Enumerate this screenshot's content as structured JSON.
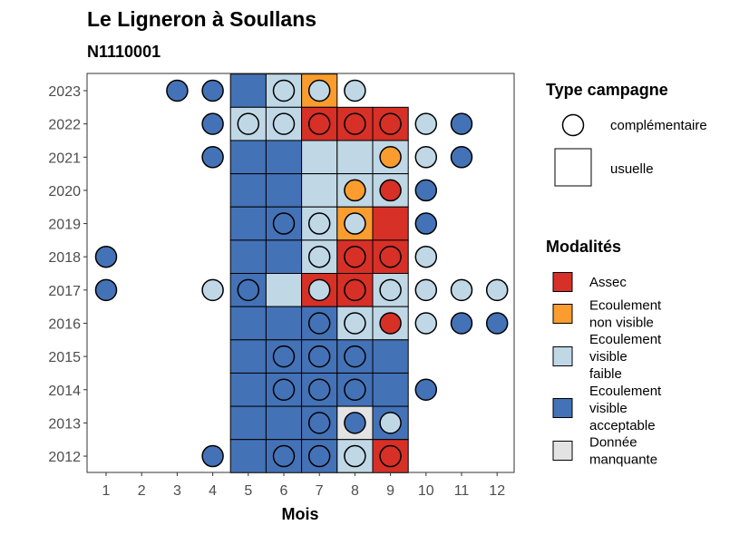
{
  "chart_data": {
    "type": "heatmap",
    "title": "Le Ligneron à Soullans",
    "subtitle": "N1110001",
    "xlabel": "Mois",
    "ylabel": "",
    "x_ticks": [
      "1",
      "2",
      "3",
      "4",
      "5",
      "6",
      "7",
      "8",
      "9",
      "10",
      "11",
      "12"
    ],
    "y_ticks": [
      "2012",
      "2013",
      "2014",
      "2015",
      "2016",
      "2017",
      "2018",
      "2019",
      "2020",
      "2021",
      "2022",
      "2023"
    ],
    "xlim": [
      1,
      12
    ],
    "ylim": [
      2012,
      2023
    ],
    "grid": false,
    "legend_placement": "right",
    "colors": {
      "assec": "#d73027",
      "ecoulement_non_visible": "#fa9c2e",
      "ecoulement_visible_faible": "#c0d8e6",
      "ecoulement_visible_acceptable": "#4472b7",
      "donnee_manquante": "#e3e3e3"
    },
    "legend_type": {
      "title": "Type campagne",
      "entries": [
        {
          "label": "complémentaire",
          "shape": "circle"
        },
        {
          "label": "usuelle",
          "shape": "square"
        }
      ]
    },
    "legend_modalites": {
      "title": "Modalités",
      "entries": [
        {
          "key": "assec",
          "lines": [
            "Assec"
          ]
        },
        {
          "key": "ecoulement_non_visible",
          "lines": [
            "Ecoulement",
            "non visible"
          ]
        },
        {
          "key": "ecoulement_visible_faible",
          "lines": [
            "Ecoulement",
            "visible",
            "faible"
          ]
        },
        {
          "key": "ecoulement_visible_acceptable",
          "lines": [
            "Ecoulement",
            "visible",
            "acceptable"
          ]
        },
        {
          "key": "donnee_manquante",
          "lines": [
            "Donnée",
            "manquante"
          ]
        }
      ]
    },
    "usuelle": [
      {
        "year": 2023,
        "month": 5,
        "value": "ecoulement_visible_acceptable"
      },
      {
        "year": 2023,
        "month": 6,
        "value": "ecoulement_visible_faible"
      },
      {
        "year": 2023,
        "month": 7,
        "value": "ecoulement_non_visible"
      },
      {
        "year": 2022,
        "month": 5,
        "value": "ecoulement_visible_faible"
      },
      {
        "year": 2022,
        "month": 6,
        "value": "ecoulement_visible_faible"
      },
      {
        "year": 2022,
        "month": 7,
        "value": "assec"
      },
      {
        "year": 2022,
        "month": 8,
        "value": "assec"
      },
      {
        "year": 2022,
        "month": 9,
        "value": "assec"
      },
      {
        "year": 2021,
        "month": 5,
        "value": "ecoulement_visible_acceptable"
      },
      {
        "year": 2021,
        "month": 6,
        "value": "ecoulement_visible_acceptable"
      },
      {
        "year": 2021,
        "month": 7,
        "value": "ecoulement_visible_faible"
      },
      {
        "year": 2021,
        "month": 8,
        "value": "ecoulement_visible_faible"
      },
      {
        "year": 2021,
        "month": 9,
        "value": "ecoulement_visible_faible"
      },
      {
        "year": 2020,
        "month": 5,
        "value": "ecoulement_visible_acceptable"
      },
      {
        "year": 2020,
        "month": 6,
        "value": "ecoulement_visible_acceptable"
      },
      {
        "year": 2020,
        "month": 7,
        "value": "ecoulement_visible_faible"
      },
      {
        "year": 2020,
        "month": 8,
        "value": "ecoulement_visible_faible"
      },
      {
        "year": 2020,
        "month": 9,
        "value": "ecoulement_visible_faible"
      },
      {
        "year": 2019,
        "month": 5,
        "value": "ecoulement_visible_acceptable"
      },
      {
        "year": 2019,
        "month": 6,
        "value": "ecoulement_visible_acceptable"
      },
      {
        "year": 2019,
        "month": 7,
        "value": "ecoulement_visible_faible"
      },
      {
        "year": 2019,
        "month": 8,
        "value": "ecoulement_non_visible"
      },
      {
        "year": 2019,
        "month": 9,
        "value": "assec"
      },
      {
        "year": 2018,
        "month": 5,
        "value": "ecoulement_visible_acceptable"
      },
      {
        "year": 2018,
        "month": 6,
        "value": "ecoulement_visible_acceptable"
      },
      {
        "year": 2018,
        "month": 7,
        "value": "ecoulement_visible_faible"
      },
      {
        "year": 2018,
        "month": 8,
        "value": "assec"
      },
      {
        "year": 2018,
        "month": 9,
        "value": "assec"
      },
      {
        "year": 2017,
        "month": 5,
        "value": "ecoulement_visible_acceptable"
      },
      {
        "year": 2017,
        "month": 6,
        "value": "ecoulement_visible_faible"
      },
      {
        "year": 2017,
        "month": 7,
        "value": "assec"
      },
      {
        "year": 2017,
        "month": 8,
        "value": "assec"
      },
      {
        "year": 2017,
        "month": 9,
        "value": "ecoulement_visible_faible"
      },
      {
        "year": 2016,
        "month": 5,
        "value": "ecoulement_visible_acceptable"
      },
      {
        "year": 2016,
        "month": 6,
        "value": "ecoulement_visible_acceptable"
      },
      {
        "year": 2016,
        "month": 7,
        "value": "ecoulement_visible_acceptable"
      },
      {
        "year": 2016,
        "month": 8,
        "value": "ecoulement_visible_faible"
      },
      {
        "year": 2016,
        "month": 9,
        "value": "ecoulement_visible_faible"
      },
      {
        "year": 2015,
        "month": 5,
        "value": "ecoulement_visible_acceptable"
      },
      {
        "year": 2015,
        "month": 6,
        "value": "ecoulement_visible_acceptable"
      },
      {
        "year": 2015,
        "month": 7,
        "value": "ecoulement_visible_acceptable"
      },
      {
        "year": 2015,
        "month": 8,
        "value": "ecoulement_visible_acceptable"
      },
      {
        "year": 2015,
        "month": 9,
        "value": "ecoulement_visible_acceptable"
      },
      {
        "year": 2014,
        "month": 5,
        "value": "ecoulement_visible_acceptable"
      },
      {
        "year": 2014,
        "month": 6,
        "value": "ecoulement_visible_acceptable"
      },
      {
        "year": 2014,
        "month": 7,
        "value": "ecoulement_visible_acceptable"
      },
      {
        "year": 2014,
        "month": 8,
        "value": "ecoulement_visible_acceptable"
      },
      {
        "year": 2014,
        "month": 9,
        "value": "ecoulement_visible_acceptable"
      },
      {
        "year": 2013,
        "month": 5,
        "value": "ecoulement_visible_acceptable"
      },
      {
        "year": 2013,
        "month": 6,
        "value": "ecoulement_visible_acceptable"
      },
      {
        "year": 2013,
        "month": 7,
        "value": "ecoulement_visible_acceptable"
      },
      {
        "year": 2013,
        "month": 8,
        "value": "donnee_manquante"
      },
      {
        "year": 2013,
        "month": 9,
        "value": "ecoulement_visible_acceptable"
      },
      {
        "year": 2012,
        "month": 5,
        "value": "ecoulement_visible_acceptable"
      },
      {
        "year": 2012,
        "month": 6,
        "value": "ecoulement_visible_acceptable"
      },
      {
        "year": 2012,
        "month": 7,
        "value": "ecoulement_visible_acceptable"
      },
      {
        "year": 2012,
        "month": 8,
        "value": "ecoulement_visible_faible"
      },
      {
        "year": 2012,
        "month": 9,
        "value": "assec"
      }
    ],
    "complementaire": [
      {
        "year": 2023,
        "month": 3,
        "value": "ecoulement_visible_acceptable"
      },
      {
        "year": 2023,
        "month": 4,
        "value": "ecoulement_visible_acceptable"
      },
      {
        "year": 2023,
        "month": 6,
        "value": "ecoulement_visible_faible"
      },
      {
        "year": 2023,
        "month": 7,
        "value": "ecoulement_visible_faible"
      },
      {
        "year": 2023,
        "month": 8,
        "value": "ecoulement_visible_faible"
      },
      {
        "year": 2022,
        "month": 4,
        "value": "ecoulement_visible_acceptable"
      },
      {
        "year": 2022,
        "month": 5,
        "value": "ecoulement_visible_faible"
      },
      {
        "year": 2022,
        "month": 6,
        "value": "ecoulement_visible_faible"
      },
      {
        "year": 2022,
        "month": 7,
        "value": "assec"
      },
      {
        "year": 2022,
        "month": 8,
        "value": "assec"
      },
      {
        "year": 2022,
        "month": 9,
        "value": "assec"
      },
      {
        "year": 2022,
        "month": 10,
        "value": "ecoulement_visible_faible"
      },
      {
        "year": 2022,
        "month": 11,
        "value": "ecoulement_visible_acceptable"
      },
      {
        "year": 2021,
        "month": 4,
        "value": "ecoulement_visible_acceptable"
      },
      {
        "year": 2021,
        "month": 9,
        "value": "ecoulement_non_visible"
      },
      {
        "year": 2021,
        "month": 10,
        "value": "ecoulement_visible_faible"
      },
      {
        "year": 2021,
        "month": 11,
        "value": "ecoulement_visible_acceptable"
      },
      {
        "year": 2020,
        "month": 8,
        "value": "ecoulement_non_visible"
      },
      {
        "year": 2020,
        "month": 9,
        "value": "assec"
      },
      {
        "year": 2020,
        "month": 10,
        "value": "ecoulement_visible_acceptable"
      },
      {
        "year": 2019,
        "month": 6,
        "value": "ecoulement_visible_acceptable"
      },
      {
        "year": 2019,
        "month": 7,
        "value": "ecoulement_visible_faible"
      },
      {
        "year": 2019,
        "month": 8,
        "value": "ecoulement_visible_faible"
      },
      {
        "year": 2019,
        "month": 10,
        "value": "ecoulement_visible_acceptable"
      },
      {
        "year": 2018,
        "month": 1,
        "value": "ecoulement_visible_acceptable"
      },
      {
        "year": 2018,
        "month": 7,
        "value": "ecoulement_visible_faible"
      },
      {
        "year": 2018,
        "month": 8,
        "value": "assec"
      },
      {
        "year": 2018,
        "month": 9,
        "value": "assec"
      },
      {
        "year": 2018,
        "month": 10,
        "value": "ecoulement_visible_faible"
      },
      {
        "year": 2017,
        "month": 1,
        "value": "ecoulement_visible_acceptable"
      },
      {
        "year": 2017,
        "month": 4,
        "value": "ecoulement_visible_faible"
      },
      {
        "year": 2017,
        "month": 5,
        "value": "ecoulement_visible_acceptable"
      },
      {
        "year": 2017,
        "month": 7,
        "value": "ecoulement_visible_faible"
      },
      {
        "year": 2017,
        "month": 8,
        "value": "assec"
      },
      {
        "year": 2017,
        "month": 9,
        "value": "ecoulement_visible_faible"
      },
      {
        "year": 2017,
        "month": 10,
        "value": "ecoulement_visible_faible"
      },
      {
        "year": 2017,
        "month": 11,
        "value": "ecoulement_visible_faible"
      },
      {
        "year": 2017,
        "month": 12,
        "value": "ecoulement_visible_faible"
      },
      {
        "year": 2016,
        "month": 7,
        "value": "ecoulement_visible_acceptable"
      },
      {
        "year": 2016,
        "month": 8,
        "value": "ecoulement_visible_faible"
      },
      {
        "year": 2016,
        "month": 9,
        "value": "assec"
      },
      {
        "year": 2016,
        "month": 10,
        "value": "ecoulement_visible_faible"
      },
      {
        "year": 2016,
        "month": 11,
        "value": "ecoulement_visible_acceptable"
      },
      {
        "year": 2016,
        "month": 12,
        "value": "ecoulement_visible_acceptable"
      },
      {
        "year": 2015,
        "month": 6,
        "value": "ecoulement_visible_acceptable"
      },
      {
        "year": 2015,
        "month": 7,
        "value": "ecoulement_visible_acceptable"
      },
      {
        "year": 2015,
        "month": 8,
        "value": "ecoulement_visible_acceptable"
      },
      {
        "year": 2014,
        "month": 6,
        "value": "ecoulement_visible_acceptable"
      },
      {
        "year": 2014,
        "month": 7,
        "value": "ecoulement_visible_acceptable"
      },
      {
        "year": 2014,
        "month": 8,
        "value": "ecoulement_visible_acceptable"
      },
      {
        "year": 2014,
        "month": 10,
        "value": "ecoulement_visible_acceptable"
      },
      {
        "year": 2013,
        "month": 7,
        "value": "ecoulement_visible_acceptable"
      },
      {
        "year": 2013,
        "month": 8,
        "value": "ecoulement_visible_acceptable"
      },
      {
        "year": 2013,
        "month": 9,
        "value": "ecoulement_visible_faible"
      },
      {
        "year": 2012,
        "month": 4,
        "value": "ecoulement_visible_acceptable"
      },
      {
        "year": 2012,
        "month": 6,
        "value": "ecoulement_visible_acceptable"
      },
      {
        "year": 2012,
        "month": 7,
        "value": "ecoulement_visible_acceptable"
      },
      {
        "year": 2012,
        "month": 8,
        "value": "ecoulement_visible_faible"
      },
      {
        "year": 2012,
        "month": 9,
        "value": "assec"
      }
    ]
  }
}
